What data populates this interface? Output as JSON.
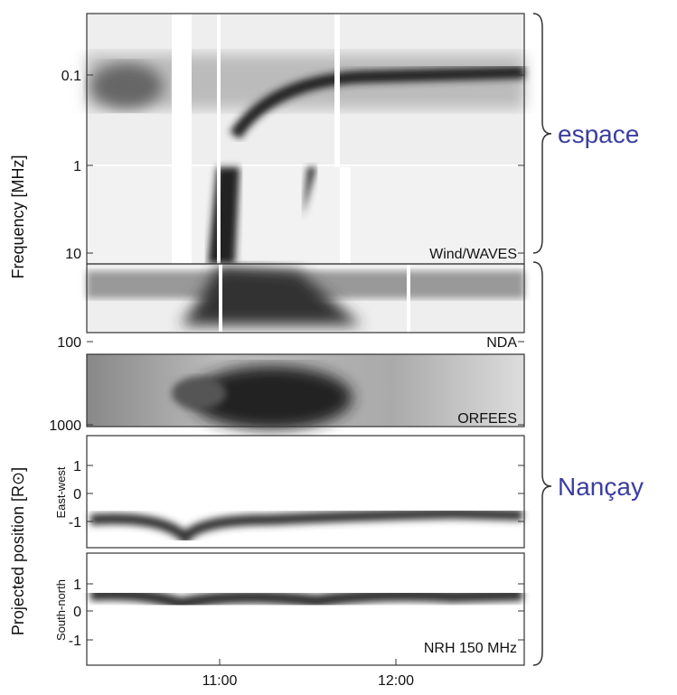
{
  "figure": {
    "y_label_frequency": "Frequency [MHz]",
    "y_label_position": "Projected position [R⊙]",
    "panels": [
      {
        "label": "Wind/WAVES",
        "ticks": [
          "0.1",
          "1",
          "10"
        ]
      },
      {
        "label": "NDA",
        "ticks": [
          "100"
        ]
      },
      {
        "label": "ORFEES",
        "ticks": [
          "1000"
        ]
      },
      {
        "sublabel": "East-west",
        "ticks": [
          "1",
          "0",
          "-1"
        ]
      },
      {
        "sublabel": "South-north",
        "label": "NRH 150 MHz",
        "ticks": [
          "1",
          "0",
          "-1"
        ]
      }
    ],
    "x_ticks": [
      "11:00",
      "12:00"
    ],
    "regions": [
      "espace",
      "Nançay"
    ]
  }
}
